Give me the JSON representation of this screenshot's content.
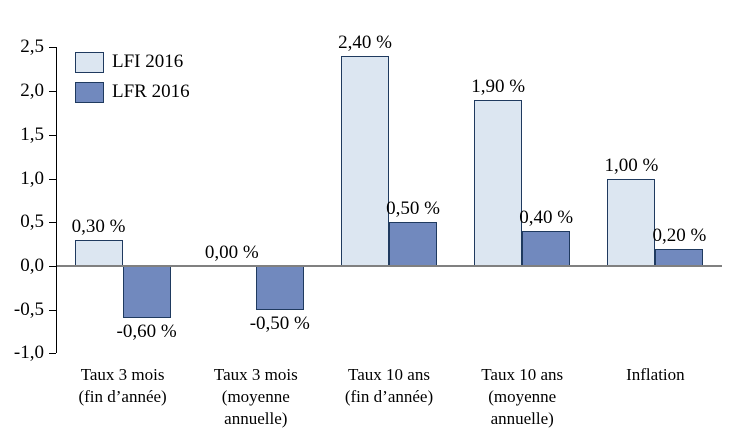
{
  "chart_data": {
    "type": "bar",
    "title": "",
    "xlabel": "",
    "ylabel": "",
    "categories": [
      "Taux 3 mois\n(fin d’année)",
      "Taux 3 mois\n(moyenne\nannuelle)",
      "Taux 10 ans\n(fin d’année)",
      "Taux 10 ans\n(moyenne\nannuelle)",
      "Inflation"
    ],
    "series": [
      {
        "name": "LFI 2016",
        "color": "#dce6f1",
        "border_color": "#1f3a5f",
        "values": [
          0.3,
          0.0,
          2.4,
          1.9,
          1.0
        ],
        "value_labels": [
          "0,30 %",
          "0,00 %",
          "2,40 %",
          "1,90 %",
          "1,00 %"
        ]
      },
      {
        "name": "LFR 2016",
        "color": "#7189be",
        "border_color": "#1f3a5f",
        "values": [
          -0.6,
          -0.5,
          0.5,
          0.4,
          0.2
        ],
        "value_labels": [
          "-0,60 %",
          "-0,50 %",
          "0,50 %",
          "0,40 %",
          "0,20 %"
        ]
      }
    ],
    "ylim": [
      -1.0,
      2.5
    ],
    "ytick_step": 0.5,
    "ytick_values": [
      2.5,
      2.0,
      1.5,
      1.0,
      0.5,
      0.0,
      -0.5,
      -1.0
    ],
    "ytick_labels": [
      "2,5",
      "2,0",
      "1,5",
      "1,0",
      "0,5",
      "0,0",
      "-0,5",
      "-1,0"
    ],
    "legend_position": "top-left",
    "grid": false,
    "zero_line_color": "#808080",
    "axis_color": "#000000"
  }
}
